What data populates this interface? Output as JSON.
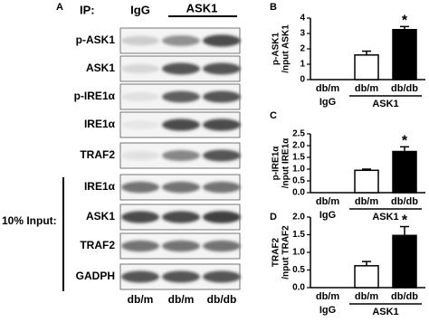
{
  "blot": {
    "panel_label": "A",
    "ip_label": "IP:",
    "ip_groups": [
      "IgG",
      "ASK1"
    ],
    "rows": [
      "p-ASK1",
      "ASK1",
      "p-IRE1α",
      "IRE1α",
      "TRAF2",
      "IRE1α",
      "ASK1",
      "TRAF2",
      "GADPH"
    ],
    "input_label": "10% Input:",
    "lanes": [
      "db/m",
      "db/m",
      "db/db"
    ]
  },
  "chart_data": [
    {
      "type": "bar",
      "panel_label": "B",
      "ylabel": [
        "p-ASK1",
        "/nput ASK1"
      ],
      "categories": [
        "db/m",
        "db/m",
        "db/db"
      ],
      "values": [
        0,
        1.6,
        3.25
      ],
      "errors": [
        0,
        0.25,
        0.2
      ],
      "colors": [
        "#ffffff",
        "#ffffff",
        "#000000"
      ],
      "ylim": [
        0,
        4
      ],
      "yticks": [
        0,
        1,
        2,
        3,
        4
      ],
      "group_labels": [
        "IgG",
        "ASK1"
      ],
      "annotation": "*"
    },
    {
      "type": "bar",
      "panel_label": "C",
      "ylabel": [
        "p-IRE1α",
        "/nput IRE1α"
      ],
      "categories": [
        "db/m",
        "db/m",
        "db/db"
      ],
      "values": [
        0,
        0.95,
        1.75
      ],
      "errors": [
        0,
        0.05,
        0.2
      ],
      "colors": [
        "#ffffff",
        "#ffffff",
        "#000000"
      ],
      "ylim": [
        0,
        2.5
      ],
      "yticks": [
        {
          "value": 0,
          "label": "0.0"
        },
        {
          "value": 0.5,
          "label": "0.5"
        },
        {
          "value": 1,
          "label": "1.0"
        },
        {
          "value": 1.5,
          "label": "1.5"
        },
        {
          "value": 2,
          "label": "2.0"
        },
        {
          "value": 2.5,
          "label": "2.5"
        }
      ],
      "group_labels": [
        "IgG",
        "ASK1"
      ],
      "annotation": "*"
    },
    {
      "type": "bar",
      "panel_label": "D",
      "ylabel": [
        "TRAF2",
        "/nput TRAF2"
      ],
      "categories": [
        "db/m",
        "db/m",
        "db/db"
      ],
      "values": [
        0,
        0.62,
        1.48
      ],
      "errors": [
        0,
        0.12,
        0.25
      ],
      "colors": [
        "#ffffff",
        "#ffffff",
        "#000000"
      ],
      "ylim": [
        0,
        2
      ],
      "yticks": [
        {
          "value": 0,
          "label": "0.0"
        },
        {
          "value": 0.5,
          "label": "0.5"
        },
        {
          "value": 1,
          "label": "1.0"
        },
        {
          "value": 1.5,
          "label": "1.5"
        },
        {
          "value": 2,
          "label": "2.0"
        }
      ],
      "group_labels": [
        "IgG",
        "ASK1"
      ],
      "annotation": "*"
    }
  ]
}
